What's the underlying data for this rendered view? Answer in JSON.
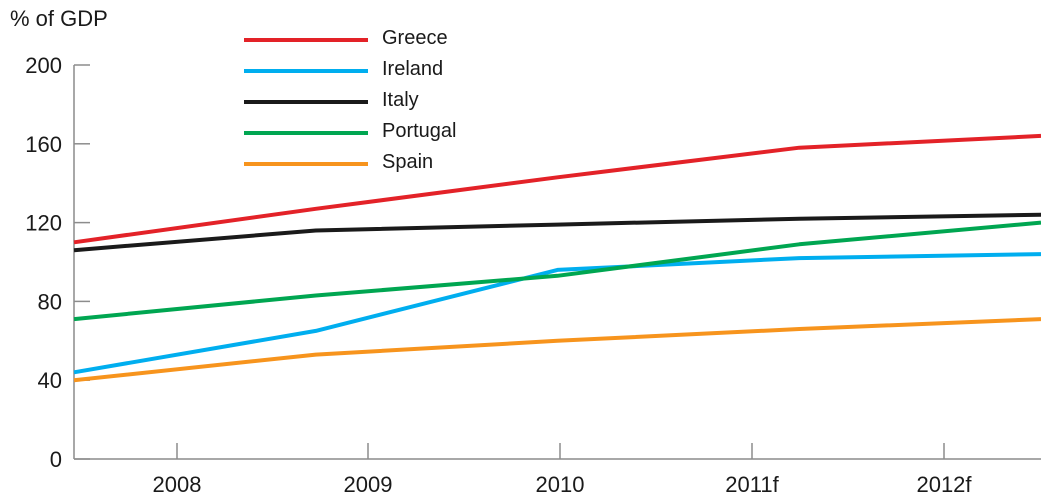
{
  "chart_data": {
    "type": "line",
    "ylabel": "% of GDP",
    "ylim": [
      0,
      200
    ],
    "y_ticks": [
      "0",
      "40",
      "80",
      "120",
      "160",
      "200"
    ],
    "categories": [
      "2008",
      "2009",
      "2010",
      "2011f",
      "2012f"
    ],
    "grid": false,
    "legend_position": "top-center",
    "series": [
      {
        "name": "Greece",
        "color": "#e32228",
        "values": [
          110,
          127,
          143,
          158,
          164
        ]
      },
      {
        "name": "Ireland",
        "color": "#00aeef",
        "values": [
          44,
          65,
          96,
          102,
          104
        ]
      },
      {
        "name": "Italy",
        "color": "#1a1a1a",
        "values": [
          106,
          116,
          119,
          122,
          124
        ]
      },
      {
        "name": "Portugal",
        "color": "#00a651",
        "values": [
          71,
          83,
          93,
          109,
          120
        ]
      },
      {
        "name": "Spain",
        "color": "#f7941d",
        "values": [
          40,
          53,
          60,
          66,
          71
        ]
      }
    ]
  }
}
